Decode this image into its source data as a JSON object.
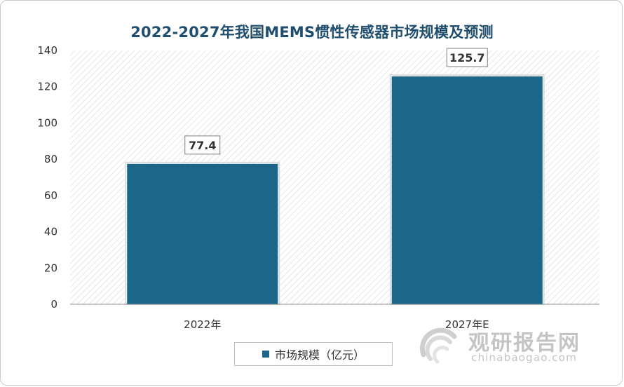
{
  "chart_data": {
    "type": "bar",
    "title": "2022-2027年我国MEMS惯性传感器市场规模及预测",
    "categories": [
      "2022年",
      "2027年E"
    ],
    "series": [
      {
        "name": "市场规模（亿元）",
        "values": [
          77.4,
          125.7
        ]
      }
    ],
    "data_labels": [
      "77.4",
      "125.7"
    ],
    "ylim": [
      0,
      140
    ],
    "yticks": [
      0,
      20,
      40,
      60,
      80,
      100,
      120,
      140
    ],
    "grid": false,
    "legend_position": "bottom",
    "colors": {
      "bar": "#1b6689",
      "title": "#1f4e6e"
    }
  },
  "watermark": {
    "cn": "观研报告网",
    "en": "chinabaogao.com",
    "logo": "chinabaogao-logo-icon"
  }
}
